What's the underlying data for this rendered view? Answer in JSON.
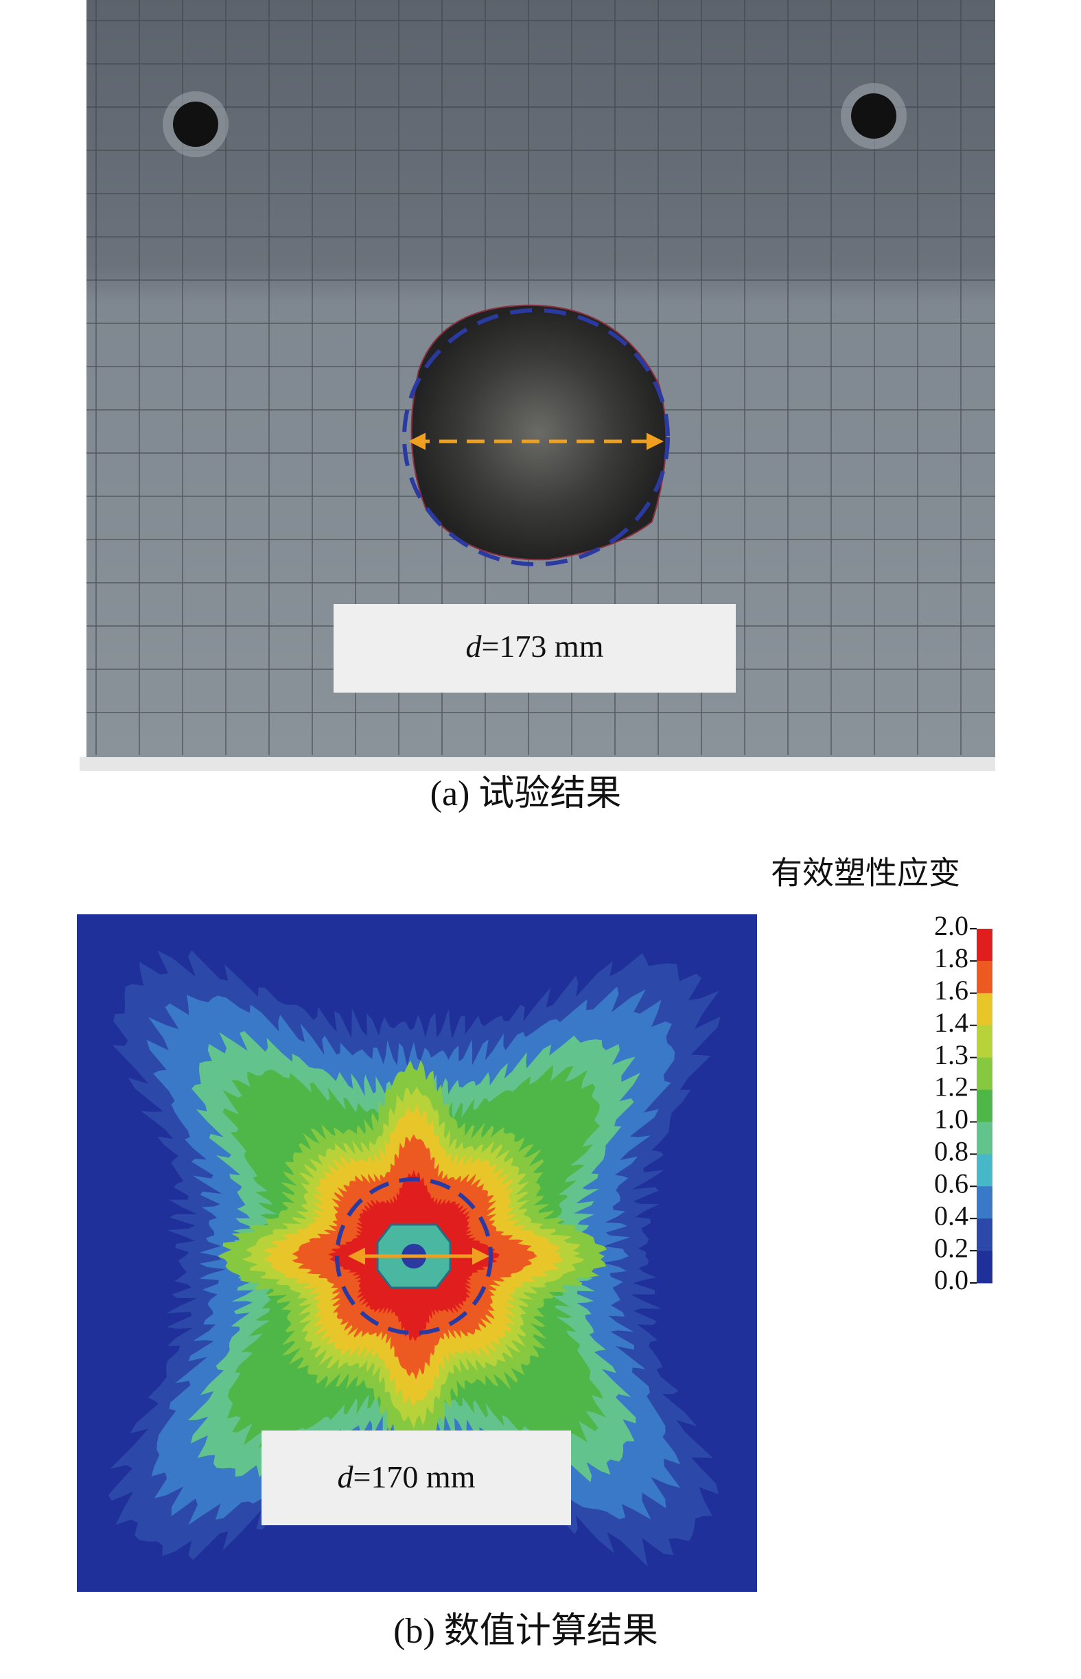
{
  "panel_a": {
    "label_var": "d",
    "label_value": "=173 mm",
    "caption": "(a) 试验结果"
  },
  "panel_b": {
    "label_var": "d",
    "label_value": "=170 mm",
    "caption": "(b) 数值计算结果"
  },
  "colorbar": {
    "title": "有效塑性应变",
    "ticks": [
      "2.0",
      "1.8",
      "1.6",
      "1.4",
      "1.3",
      "1.2",
      "1.0",
      "0.8",
      "0.6",
      "0.4",
      "0.2",
      "0.0"
    ],
    "colors": [
      "#e01e1e",
      "#ec5a22",
      "#e8c62a",
      "#b8d23a",
      "#86c840",
      "#4fb648",
      "#62c48c",
      "#46b8c8",
      "#3a78c8",
      "#2c48a8",
      "#20309a"
    ]
  }
}
